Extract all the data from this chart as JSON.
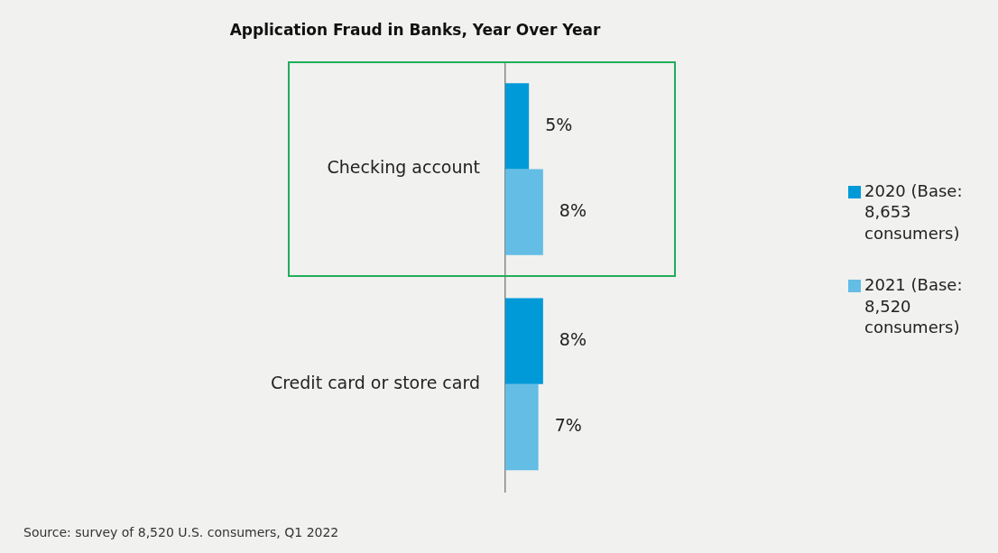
{
  "chart_data": {
    "type": "bar",
    "orientation": "horizontal",
    "title": "Application Fraud in Banks, Year Over Year",
    "categories": [
      "Checking account",
      "Credit card or store card"
    ],
    "series": [
      {
        "name": "2020 (Base: 8,653 consumers)",
        "color": "#009ad9",
        "values": [
          5,
          8
        ],
        "value_labels": [
          "5%",
          "8%"
        ]
      },
      {
        "name": "2021 (Base: 8,520 consumers)",
        "color": "#63bde4",
        "values": [
          8,
          7
        ],
        "value_labels": [
          "8%",
          "7%"
        ]
      }
    ],
    "tick_labels": "y",
    "legend": "right",
    "annotations": [
      "Source: survey of 8,520 U.S. consumers, Q1 2022"
    ]
  }
}
